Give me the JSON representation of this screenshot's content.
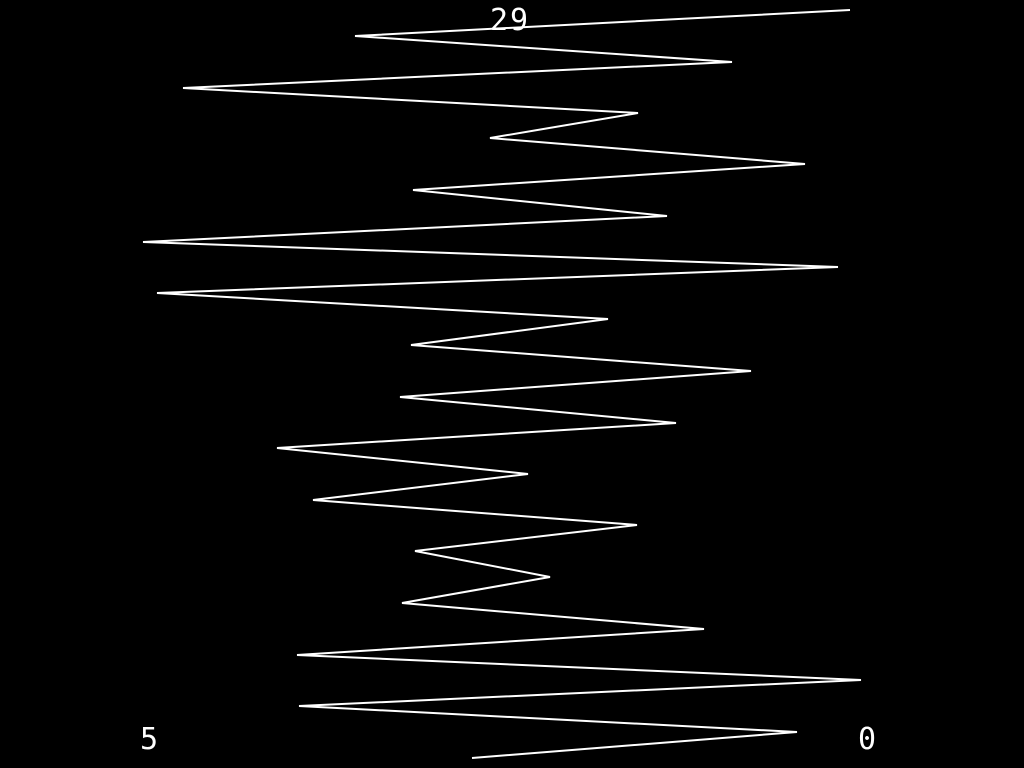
{
  "colors": {
    "background": "#000000",
    "foreground": "#ffffff"
  },
  "hud": {
    "timer": "29",
    "left_score": "5",
    "right_score": "0"
  }
}
